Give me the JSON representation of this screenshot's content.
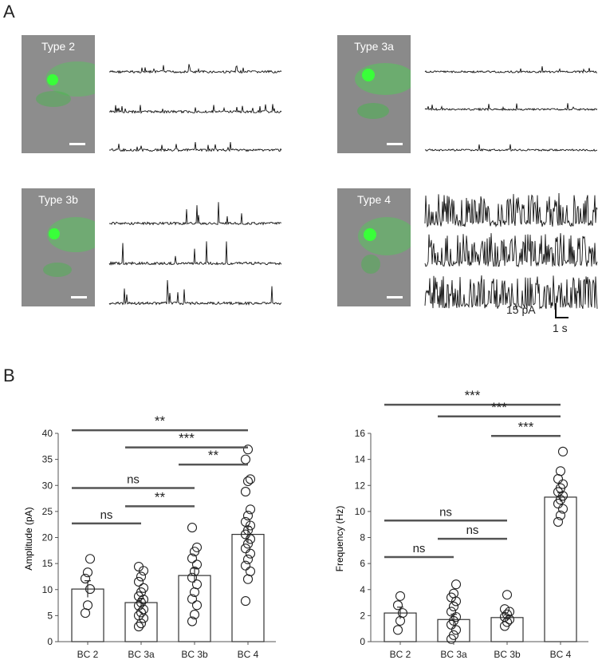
{
  "panels": {
    "a": "A",
    "b": "B"
  },
  "cells": [
    {
      "label": "Type 2"
    },
    {
      "label": "Type 3a"
    },
    {
      "label": "Type 3b"
    },
    {
      "label": "Type 4"
    }
  ],
  "scale_bar": {
    "amplitude": "15 pA",
    "time": "1 s"
  },
  "chart_data": [
    {
      "type": "bar",
      "categories": [
        "BC 2",
        "BC 3a",
        "BC 3b",
        "BC 4"
      ],
      "values": [
        10.1,
        7.5,
        12.7,
        20.6
      ],
      "errors": [
        1.6,
        0.8,
        1.4,
        1.5
      ],
      "points": [
        [
          5.5,
          7.0,
          10.1,
          12.1,
          13.3,
          15.9
        ],
        [
          2.9,
          3.5,
          4.5,
          5.0,
          5.6,
          6.2,
          6.9,
          7.5,
          8.1,
          8.7,
          9.5,
          10.3,
          11.5,
          12.5,
          13.6,
          14.4
        ],
        [
          3.9,
          5.2,
          7.0,
          8.2,
          9.5,
          11.0,
          12.3,
          13.5,
          14.8,
          16.0,
          17.3,
          18.1,
          21.9
        ],
        [
          7.8,
          12.0,
          13.5,
          14.6,
          15.8,
          16.9,
          17.9,
          18.8,
          19.7,
          20.6,
          21.4,
          22.3,
          23.0,
          24.2,
          25.4,
          28.8,
          30.8,
          31.2,
          35.0,
          36.9
        ]
      ],
      "ylabel": "Amplitude (pA)",
      "ylim": [
        0,
        40
      ],
      "yticks": [
        "0",
        "5",
        "10",
        "15",
        "20",
        "25",
        "30",
        "35",
        "40"
      ],
      "comparisons": [
        {
          "from": 0,
          "to": 3,
          "label": "**",
          "level": 40.6
        },
        {
          "from": 1,
          "to": 3,
          "label": "***",
          "level": 37.3
        },
        {
          "from": 2,
          "to": 3,
          "label": "**",
          "level": 34.0
        },
        {
          "from": 0,
          "to": 2,
          "label": "ns",
          "level": 29.5
        },
        {
          "from": 1,
          "to": 2,
          "label": "**",
          "level": 26.0
        },
        {
          "from": 0,
          "to": 1,
          "label": "ns",
          "level": 22.7
        }
      ]
    },
    {
      "type": "bar",
      "categories": [
        "BC 2",
        "BC 3a",
        "BC 3b",
        "BC 4"
      ],
      "values": [
        2.2,
        1.7,
        1.85,
        11.1
      ],
      "errors": [
        0.45,
        0.4,
        0.2,
        0.35
      ],
      "points": [
        [
          0.9,
          1.6,
          2.2,
          2.8,
          3.5
        ],
        [
          0.2,
          0.5,
          0.9,
          1.3,
          1.6,
          1.9,
          2.3,
          2.7,
          3.1,
          3.4,
          3.7,
          4.4
        ],
        [
          1.2,
          1.5,
          1.7,
          1.9,
          2.1,
          2.3,
          2.5,
          3.6
        ],
        [
          9.2,
          9.7,
          10.2,
          10.6,
          10.9,
          11.2,
          11.5,
          11.8,
          12.1,
          12.5,
          13.1,
          14.6
        ]
      ],
      "ylabel": "Frequency (Hz)",
      "ylim": [
        0,
        16
      ],
      "yticks": [
        "0",
        "2",
        "4",
        "6",
        "8",
        "10",
        "12",
        "14",
        "16"
      ],
      "comparisons": [
        {
          "from": 0,
          "to": 3,
          "label": "***",
          "level": 18.2
        },
        {
          "from": 1,
          "to": 3,
          "label": "***",
          "level": 17.3
        },
        {
          "from": 2,
          "to": 3,
          "label": "***",
          "level": 15.8
        },
        {
          "from": 0,
          "to": 2,
          "label": "ns",
          "level": 9.3
        },
        {
          "from": 1,
          "to": 2,
          "label": "ns",
          "level": 7.9
        },
        {
          "from": 0,
          "to": 1,
          "label": "ns",
          "level": 6.5
        }
      ]
    }
  ]
}
